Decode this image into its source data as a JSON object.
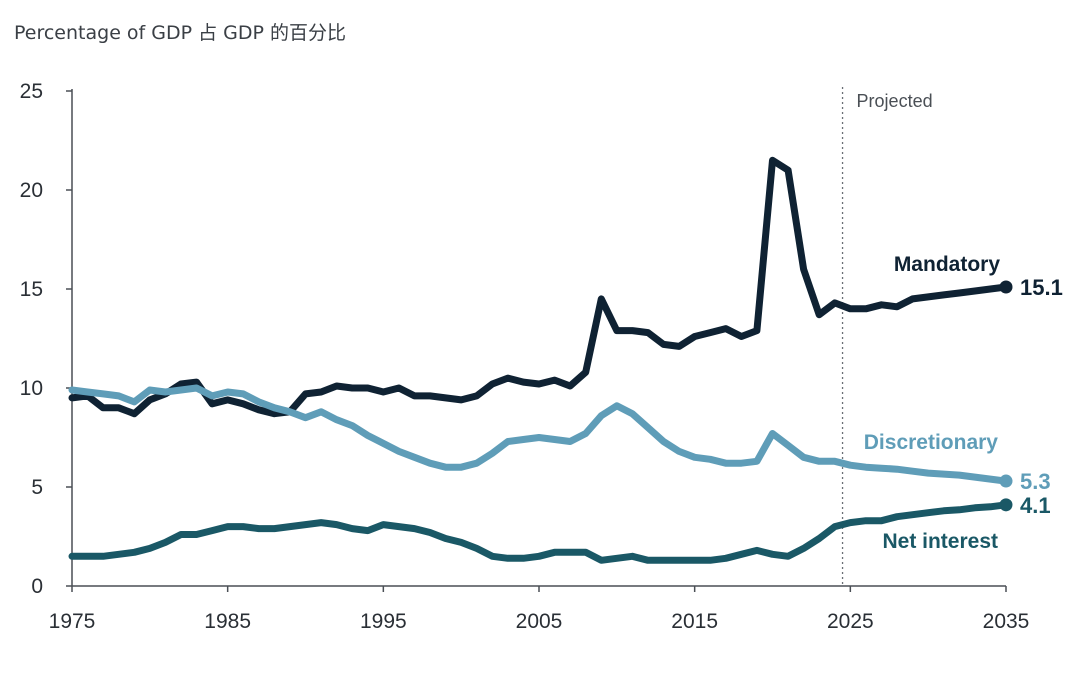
{
  "chart_data": {
    "type": "line",
    "title": "Percentage of GDP  占 GDP 的百分比",
    "xlabel": "",
    "ylabel": "",
    "xlim": [
      1975,
      2035
    ],
    "ylim": [
      0,
      25
    ],
    "xticks": [
      1975,
      1985,
      1995,
      2005,
      2015,
      2025,
      2035
    ],
    "yticks": [
      0,
      5,
      10,
      15,
      20,
      25
    ],
    "projection_start": 2024.5,
    "projection_label": "Projected",
    "series": [
      {
        "name": "Mandatory",
        "color": "#0f2233",
        "end_label": "15.1",
        "x": [
          1975,
          1976,
          1977,
          1978,
          1979,
          1980,
          1981,
          1982,
          1983,
          1984,
          1985,
          1986,
          1987,
          1988,
          1989,
          1990,
          1991,
          1992,
          1993,
          1994,
          1995,
          1996,
          1997,
          1998,
          1999,
          2000,
          2001,
          2002,
          2003,
          2004,
          2005,
          2006,
          2007,
          2008,
          2009,
          2010,
          2011,
          2012,
          2013,
          2014,
          2015,
          2016,
          2017,
          2018,
          2019,
          2020,
          2021,
          2022,
          2023,
          2024,
          2025,
          2026,
          2027,
          2028,
          2029,
          2030,
          2031,
          2032,
          2033,
          2034,
          2035
        ],
        "values": [
          9.5,
          9.6,
          9.0,
          9.0,
          8.7,
          9.4,
          9.7,
          10.2,
          10.3,
          9.2,
          9.4,
          9.2,
          8.9,
          8.7,
          8.8,
          9.7,
          9.8,
          10.1,
          10.0,
          10.0,
          9.8,
          10.0,
          9.6,
          9.6,
          9.5,
          9.4,
          9.6,
          10.2,
          10.5,
          10.3,
          10.2,
          10.4,
          10.1,
          10.8,
          14.5,
          12.9,
          12.9,
          12.8,
          12.2,
          12.1,
          12.6,
          12.8,
          13.0,
          12.6,
          12.9,
          21.5,
          21.0,
          16.0,
          13.7,
          14.3,
          14.0,
          14.0,
          14.2,
          14.1,
          14.5,
          14.6,
          14.7,
          14.8,
          14.9,
          15.0,
          15.1
        ]
      },
      {
        "name": "Discretionary",
        "color": "#5f9db8",
        "end_label": "5.3",
        "x": [
          1975,
          1976,
          1977,
          1978,
          1979,
          1980,
          1981,
          1982,
          1983,
          1984,
          1985,
          1986,
          1987,
          1988,
          1989,
          1990,
          1991,
          1992,
          1993,
          1994,
          1995,
          1996,
          1997,
          1998,
          1999,
          2000,
          2001,
          2002,
          2003,
          2004,
          2005,
          2006,
          2007,
          2008,
          2009,
          2010,
          2011,
          2012,
          2013,
          2014,
          2015,
          2016,
          2017,
          2018,
          2019,
          2020,
          2021,
          2022,
          2023,
          2024,
          2025,
          2026,
          2027,
          2028,
          2029,
          2030,
          2031,
          2032,
          2033,
          2034,
          2035
        ],
        "values": [
          9.9,
          9.8,
          9.7,
          9.6,
          9.3,
          9.9,
          9.8,
          9.9,
          10.0,
          9.6,
          9.8,
          9.7,
          9.3,
          9.0,
          8.8,
          8.5,
          8.8,
          8.4,
          8.1,
          7.6,
          7.2,
          6.8,
          6.5,
          6.2,
          6.0,
          6.0,
          6.2,
          6.7,
          7.3,
          7.4,
          7.5,
          7.4,
          7.3,
          7.7,
          8.6,
          9.1,
          8.7,
          8.0,
          7.3,
          6.8,
          6.5,
          6.4,
          6.2,
          6.2,
          6.3,
          7.7,
          7.1,
          6.5,
          6.3,
          6.3,
          6.1,
          6.0,
          5.95,
          5.9,
          5.8,
          5.7,
          5.65,
          5.6,
          5.5,
          5.4,
          5.3
        ]
      },
      {
        "name": "Net interest",
        "color": "#1a5866",
        "end_label": "4.1",
        "x": [
          1975,
          1976,
          1977,
          1978,
          1979,
          1980,
          1981,
          1982,
          1983,
          1984,
          1985,
          1986,
          1987,
          1988,
          1989,
          1990,
          1991,
          1992,
          1993,
          1994,
          1995,
          1996,
          1997,
          1998,
          1999,
          2000,
          2001,
          2002,
          2003,
          2004,
          2005,
          2006,
          2007,
          2008,
          2009,
          2010,
          2011,
          2012,
          2013,
          2014,
          2015,
          2016,
          2017,
          2018,
          2019,
          2020,
          2021,
          2022,
          2023,
          2024,
          2025,
          2026,
          2027,
          2028,
          2029,
          2030,
          2031,
          2032,
          2033,
          2034,
          2035
        ],
        "values": [
          1.5,
          1.5,
          1.5,
          1.6,
          1.7,
          1.9,
          2.2,
          2.6,
          2.6,
          2.8,
          3.0,
          3.0,
          2.9,
          2.9,
          3.0,
          3.1,
          3.2,
          3.1,
          2.9,
          2.8,
          3.1,
          3.0,
          2.9,
          2.7,
          2.4,
          2.2,
          1.9,
          1.5,
          1.4,
          1.4,
          1.5,
          1.7,
          1.7,
          1.7,
          1.3,
          1.4,
          1.5,
          1.3,
          1.3,
          1.3,
          1.3,
          1.3,
          1.4,
          1.6,
          1.8,
          1.6,
          1.5,
          1.9,
          2.4,
          3.0,
          3.2,
          3.3,
          3.3,
          3.5,
          3.6,
          3.7,
          3.8,
          3.85,
          3.95,
          4.0,
          4.1
        ]
      }
    ]
  }
}
